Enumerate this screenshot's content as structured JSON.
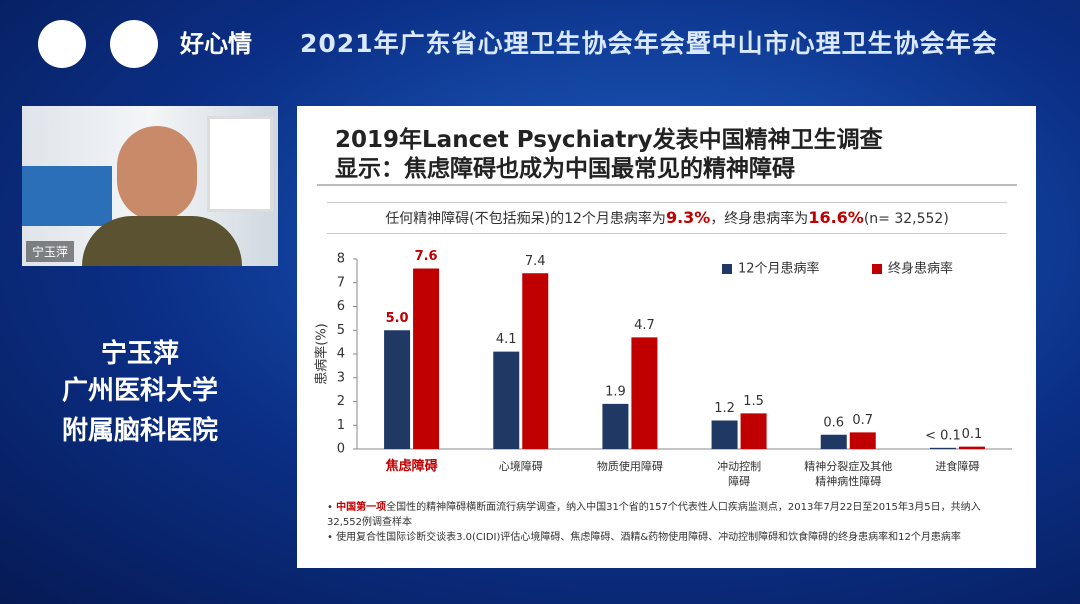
{
  "header": {
    "title": "2021年广东省心理卫生协会年会暨中山市心理卫生协会年会",
    "brand": "好心情"
  },
  "speaker": {
    "name_tag": "宁玉萍",
    "lines": [
      "宁玉萍",
      "广州医科大学",
      "附属脑科医院"
    ]
  },
  "slide": {
    "title_lines": [
      "2019年Lancet Psychiatry发表中国精神卫生调查",
      "显示：焦虑障碍也成为中国最常见的精神障碍"
    ],
    "summary": [
      "任何精神障碍(不包括痴呆)的12个月患病率为",
      "9.3%",
      "，终身患病率为",
      "16.6%",
      "(n= 32,552)"
    ],
    "notes": [
      [
        "中国第一项",
        "全国性的精神障碍横断面流行病学调查，纳入中国31个省的157个代表性人口疾病监测点，2013年7月22日至2015年3月5日，共纳入32,552例调查样本"
      ],
      [
        "使用复合性国际诊断交谈表3.0(CIDI)评估心境障碍、焦虑障碍、酒精&药物使用障碍、冲动控制障碍和饮食障碍的终身患病率和12个月患病率"
      ]
    ]
  },
  "chart_data": {
    "type": "bar",
    "y_label": "患病率(%)",
    "categories": [
      "焦虑障碍",
      "心境障碍",
      "物质使用障碍",
      "冲动控制\n障碍",
      "精神分裂症及其他\n精神病性障碍",
      "进食障碍"
    ],
    "series": [
      {
        "name": "12个月患病率",
        "color": "#1f3864",
        "values": [
          5.0,
          4.1,
          1.9,
          1.2,
          0.6,
          0.05
        ],
        "value_labels": [
          "5.0",
          "4.1",
          "1.9",
          "1.2",
          "0.6",
          "< 0.1"
        ]
      },
      {
        "name": "终身患病率",
        "color": "#c00000",
        "values": [
          7.6,
          7.4,
          4.7,
          1.5,
          0.7,
          0.1
        ]
      }
    ],
    "ylim": [
      0,
      8
    ],
    "yticks": [
      0,
      1,
      2,
      3,
      4,
      5,
      6,
      7,
      8
    ],
    "legend": "top-right"
  }
}
